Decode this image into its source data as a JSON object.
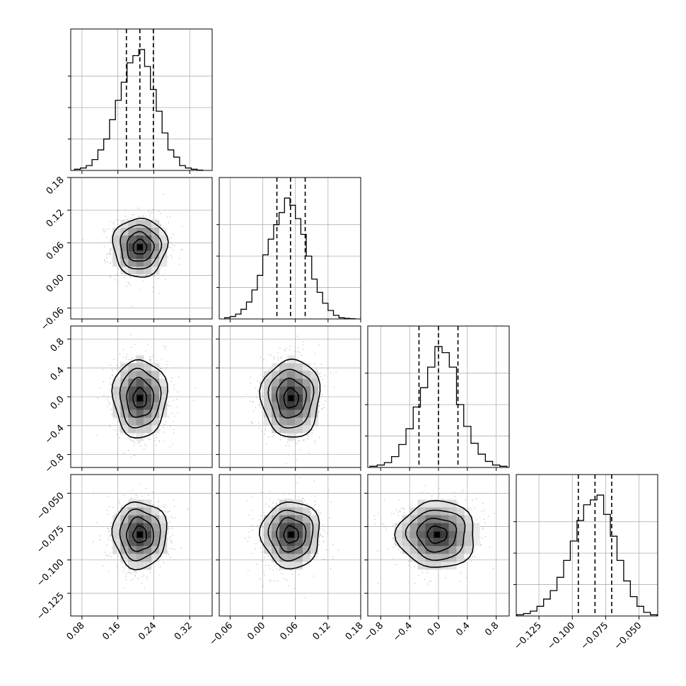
{
  "chart_data": {
    "type": "corner",
    "title": "",
    "parameters": [
      {
        "index": 0,
        "range": [
          0.055,
          0.37
        ],
        "ticks": [
          0.08,
          0.16,
          0.24,
          0.32
        ],
        "tick_labels": [
          "0.08",
          "0.16",
          "0.24",
          "0.32"
        ],
        "quantiles": [
          0.179,
          0.209,
          0.239
        ],
        "center": 0.209,
        "sigma": 0.03,
        "hist": [
          {
            "x": 0.07,
            "y": 0.01
          },
          {
            "x": 0.083,
            "y": 0.02
          },
          {
            "x": 0.096,
            "y": 0.04
          },
          {
            "x": 0.109,
            "y": 0.09
          },
          {
            "x": 0.122,
            "y": 0.17
          },
          {
            "x": 0.135,
            "y": 0.26
          },
          {
            "x": 0.148,
            "y": 0.42
          },
          {
            "x": 0.161,
            "y": 0.58
          },
          {
            "x": 0.174,
            "y": 0.73
          },
          {
            "x": 0.187,
            "y": 0.89
          },
          {
            "x": 0.2,
            "y": 0.95
          },
          {
            "x": 0.213,
            "y": 1.0
          },
          {
            "x": 0.226,
            "y": 0.86
          },
          {
            "x": 0.239,
            "y": 0.67
          },
          {
            "x": 0.252,
            "y": 0.49
          },
          {
            "x": 0.265,
            "y": 0.31
          },
          {
            "x": 0.278,
            "y": 0.17
          },
          {
            "x": 0.291,
            "y": 0.11
          },
          {
            "x": 0.304,
            "y": 0.04
          },
          {
            "x": 0.317,
            "y": 0.02
          },
          {
            "x": 0.33,
            "y": 0.01
          },
          {
            "x": 0.343,
            "y": 0.003
          }
        ]
      },
      {
        "index": 1,
        "range": [
          -0.08,
          0.18
        ],
        "ticks": [
          -0.06,
          0.0,
          0.06,
          0.12,
          0.18
        ],
        "tick_labels": [
          "−0.06",
          "0.00",
          "0.06",
          "0.12",
          "0.18"
        ],
        "quantiles": [
          0.026,
          0.051,
          0.078
        ],
        "center": 0.052,
        "sigma": 0.027,
        "hist": [
          {
            "x": -0.065,
            "y": 0.01
          },
          {
            "x": -0.055,
            "y": 0.02
          },
          {
            "x": -0.045,
            "y": 0.04
          },
          {
            "x": -0.035,
            "y": 0.08
          },
          {
            "x": -0.025,
            "y": 0.14
          },
          {
            "x": -0.015,
            "y": 0.24
          },
          {
            "x": -0.005,
            "y": 0.36
          },
          {
            "x": 0.005,
            "y": 0.53
          },
          {
            "x": 0.015,
            "y": 0.66
          },
          {
            "x": 0.025,
            "y": 0.78
          },
          {
            "x": 0.035,
            "y": 0.88
          },
          {
            "x": 0.045,
            "y": 1.0
          },
          {
            "x": 0.055,
            "y": 0.94
          },
          {
            "x": 0.065,
            "y": 0.83
          },
          {
            "x": 0.075,
            "y": 0.7
          },
          {
            "x": 0.085,
            "y": 0.52
          },
          {
            "x": 0.095,
            "y": 0.33
          },
          {
            "x": 0.105,
            "y": 0.22
          },
          {
            "x": 0.115,
            "y": 0.13
          },
          {
            "x": 0.125,
            "y": 0.07
          },
          {
            "x": 0.135,
            "y": 0.03
          },
          {
            "x": 0.145,
            "y": 0.01
          },
          {
            "x": 0.155,
            "y": 0.005
          },
          {
            "x": 0.165,
            "y": 0.002
          }
        ]
      },
      {
        "index": 2,
        "range": [
          -0.98,
          0.98
        ],
        "ticks": [
          -0.8,
          -0.4,
          0.0,
          0.4,
          0.8
        ],
        "tick_labels": [
          "−0.8",
          "−0.4",
          "0.0",
          "0.4",
          "0.8"
        ],
        "quantiles": [
          -0.27,
          0.0,
          0.27
        ],
        "center": -0.02,
        "sigma": 0.27,
        "hist": [
          {
            "x": -0.9,
            "y": 0.01
          },
          {
            "x": -0.8,
            "y": 0.02
          },
          {
            "x": -0.7,
            "y": 0.04
          },
          {
            "x": -0.6,
            "y": 0.09
          },
          {
            "x": -0.5,
            "y": 0.19
          },
          {
            "x": -0.4,
            "y": 0.32
          },
          {
            "x": -0.3,
            "y": 0.5
          },
          {
            "x": -0.2,
            "y": 0.66
          },
          {
            "x": -0.1,
            "y": 0.83
          },
          {
            "x": 0.0,
            "y": 1.0
          },
          {
            "x": 0.1,
            "y": 0.95
          },
          {
            "x": 0.2,
            "y": 0.83
          },
          {
            "x": 0.3,
            "y": 0.52
          },
          {
            "x": 0.4,
            "y": 0.34
          },
          {
            "x": 0.5,
            "y": 0.2
          },
          {
            "x": 0.6,
            "y": 0.11
          },
          {
            "x": 0.7,
            "y": 0.05
          },
          {
            "x": 0.8,
            "y": 0.02
          },
          {
            "x": 0.9,
            "y": 0.01
          }
        ]
      },
      {
        "index": 3,
        "range": [
          -0.142,
          -0.036
        ],
        "ticks": [
          -0.125,
          -0.1,
          -0.075,
          -0.05
        ],
        "tick_labels": [
          "−0.125",
          "−0.100",
          "−0.075",
          "−0.050"
        ],
        "quantiles": [
          -0.0955,
          -0.083,
          -0.0705
        ],
        "center": -0.081,
        "sigma": 0.0125,
        "hist": [
          {
            "x": -0.139,
            "y": 0.01
          },
          {
            "x": -0.134,
            "y": 0.02
          },
          {
            "x": -0.129,
            "y": 0.04
          },
          {
            "x": -0.124,
            "y": 0.08
          },
          {
            "x": -0.119,
            "y": 0.14
          },
          {
            "x": -0.114,
            "y": 0.21
          },
          {
            "x": -0.109,
            "y": 0.32
          },
          {
            "x": -0.104,
            "y": 0.46
          },
          {
            "x": -0.099,
            "y": 0.62
          },
          {
            "x": -0.094,
            "y": 0.79
          },
          {
            "x": -0.089,
            "y": 0.92
          },
          {
            "x": -0.084,
            "y": 0.96
          },
          {
            "x": -0.079,
            "y": 1.0
          },
          {
            "x": -0.074,
            "y": 0.84
          },
          {
            "x": -0.069,
            "y": 0.66
          },
          {
            "x": -0.064,
            "y": 0.46
          },
          {
            "x": -0.059,
            "y": 0.29
          },
          {
            "x": -0.054,
            "y": 0.16
          },
          {
            "x": -0.049,
            "y": 0.08
          },
          {
            "x": -0.044,
            "y": 0.03
          },
          {
            "x": -0.039,
            "y": 0.01
          }
        ]
      }
    ],
    "contour_sigmas": [
      0.5,
      1.0,
      1.5,
      2.0
    ],
    "grid": true,
    "colors": {
      "line": "#000000",
      "grid": "#b0b0b0",
      "points": "#a8a8a8"
    }
  }
}
